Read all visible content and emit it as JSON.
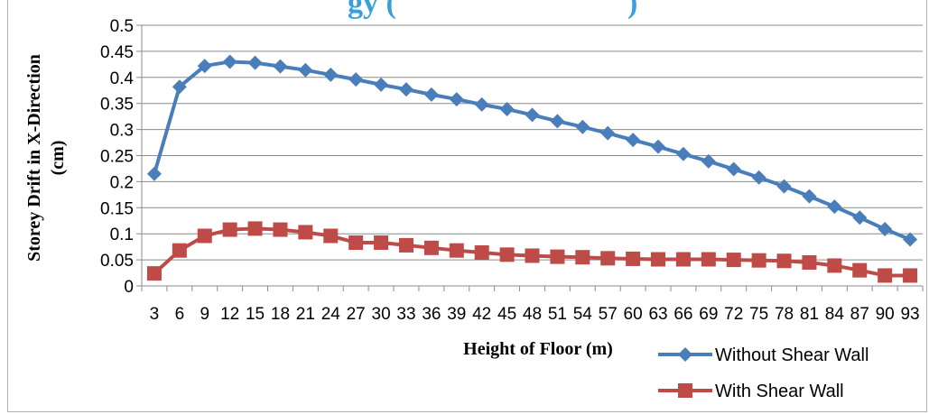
{
  "chart_data": {
    "type": "line",
    "title": "gy (",
    "title_suffix": ")",
    "xlabel": "Height of Floor (m)",
    "ylabel": "Storey Drift in X-Direction",
    "ylabel_line2": "(cm)",
    "ylim": [
      0,
      0.5
    ],
    "yticks": [
      "0",
      "0.05",
      "0.1",
      "0.15",
      "0.2",
      "0.25",
      "0.3",
      "0.35",
      "0.4",
      "0.45",
      "0.5"
    ],
    "x": [
      3,
      6,
      9,
      12,
      15,
      18,
      21,
      24,
      27,
      30,
      33,
      36,
      39,
      42,
      45,
      48,
      51,
      54,
      57,
      60,
      63,
      66,
      69,
      72,
      75,
      78,
      81,
      84,
      87,
      90,
      93
    ],
    "grid": true,
    "legend_position": "bottom-right",
    "series": [
      {
        "name": "Without Shear Wall",
        "color": "#4a7ebb",
        "marker": "diamond",
        "values": [
          0.215,
          0.382,
          0.422,
          0.43,
          0.428,
          0.421,
          0.414,
          0.405,
          0.396,
          0.386,
          0.377,
          0.367,
          0.358,
          0.348,
          0.339,
          0.328,
          0.316,
          0.305,
          0.293,
          0.28,
          0.267,
          0.253,
          0.239,
          0.224,
          0.208,
          0.191,
          0.172,
          0.152,
          0.131,
          0.109,
          0.089
        ]
      },
      {
        "name": "With Shear Wall",
        "color": "#be4b48",
        "marker": "square",
        "values": [
          0.024,
          0.068,
          0.096,
          0.108,
          0.11,
          0.108,
          0.103,
          0.096,
          0.083,
          0.083,
          0.078,
          0.073,
          0.068,
          0.064,
          0.06,
          0.058,
          0.056,
          0.055,
          0.053,
          0.052,
          0.051,
          0.051,
          0.051,
          0.05,
          0.049,
          0.048,
          0.045,
          0.039,
          0.03,
          0.02,
          0.02
        ]
      }
    ]
  }
}
